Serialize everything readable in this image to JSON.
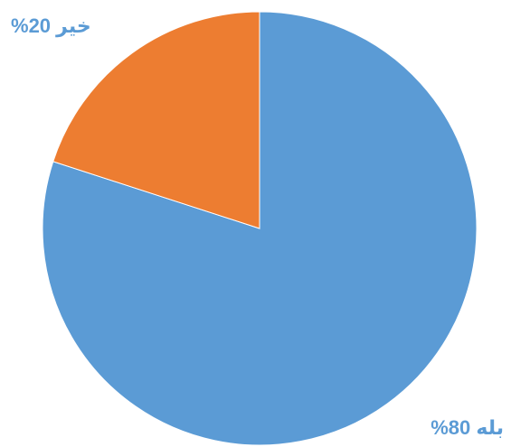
{
  "chart_data": {
    "type": "pie",
    "title": "",
    "start_angle_deg": 0,
    "direction": "clockwise",
    "slices": [
      {
        "label": "بله",
        "value": 80,
        "display": "80%",
        "color": "#5B9BD5"
      },
      {
        "label": "خیر",
        "value": 20,
        "display": "20%",
        "color": "#ED7D31"
      }
    ],
    "legend": "none",
    "label_color": "#5B9BD5"
  }
}
